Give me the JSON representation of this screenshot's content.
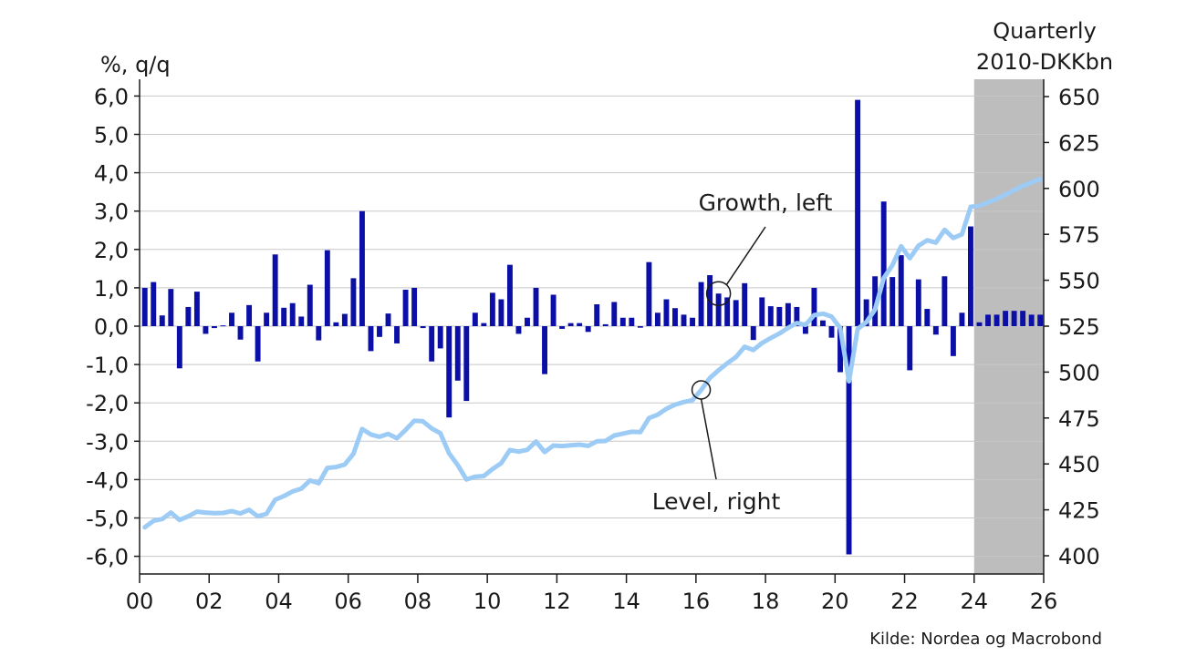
{
  "chart_data": {
    "type": "bar+line",
    "left_axis_unit": "%, q/q",
    "right_axis_unit_line1": "Quarterly",
    "right_axis_unit_line2": "2010-DKKbn",
    "source": "Kilde: Nordea og Macrobond",
    "x_ticks": [
      "00",
      "02",
      "04",
      "06",
      "08",
      "10",
      "12",
      "14",
      "16",
      "18",
      "20",
      "22",
      "24",
      "26"
    ],
    "x_range": [
      2000,
      2026
    ],
    "left_ticks": [
      "6,0",
      "5,0",
      "4,0",
      "3,0",
      "2,0",
      "1,0",
      "0,0",
      "-1,0",
      "-2,0",
      "-3,0",
      "-4,0",
      "-5,0",
      "-6,0"
    ],
    "left_range": [
      -6.5,
      6.2
    ],
    "right_ticks": [
      "650",
      "625",
      "600",
      "575",
      "550",
      "525",
      "500",
      "475",
      "450",
      "425",
      "400"
    ],
    "right_range": [
      392,
      655
    ],
    "forecast_shading": {
      "from": 2024,
      "to": 2026,
      "color": "#bdbdbd"
    },
    "grid": true,
    "colors": {
      "bars": "#0b0fa6",
      "line": "#9ccbf6",
      "grid": "#c8c8c8",
      "axis": "#1a1a1a"
    },
    "annotations": [
      {
        "text": "Growth, left",
        "series": "growth",
        "target_x": 2016.5
      },
      {
        "text": "Level, right",
        "series": "level",
        "target_x": 2016.1
      }
    ],
    "series": [
      {
        "id": "growth",
        "axis": "left",
        "kind": "bar",
        "quarters_start": 2000.0,
        "values": [
          1.0,
          1.15,
          0.28,
          0.97,
          -1.1,
          0.5,
          0.9,
          -0.2,
          -0.05,
          0.02,
          0.35,
          -0.35,
          0.55,
          -0.92,
          0.35,
          1.87,
          0.48,
          0.6,
          0.25,
          1.08,
          -0.37,
          1.98,
          0.1,
          0.32,
          1.25,
          3.0,
          -0.65,
          -0.28,
          0.33,
          -0.45,
          0.95,
          1.0,
          -0.05,
          -0.92,
          -0.58,
          -2.38,
          -1.42,
          -1.95,
          0.35,
          0.08,
          0.87,
          0.7,
          1.6,
          -0.2,
          0.22,
          1.0,
          -1.25,
          0.82,
          -0.07,
          0.08,
          0.08,
          -0.15,
          0.57,
          0.05,
          0.63,
          0.22,
          0.22,
          -0.04,
          1.67,
          0.35,
          0.7,
          0.47,
          0.3,
          0.22,
          1.15,
          1.33,
          0.85,
          0.75,
          0.68,
          1.12,
          -0.36,
          0.75,
          0.52,
          0.5,
          0.6,
          0.5,
          -0.2,
          1.0,
          0.15,
          -0.3,
          -1.2,
          -5.95,
          5.9,
          0.7,
          1.3,
          3.25,
          1.28,
          1.85,
          -1.15,
          1.22,
          0.45,
          -0.22,
          1.3,
          -0.78,
          0.35,
          2.6,
          0.1,
          0.3,
          0.3,
          0.4,
          0.4,
          0.4,
          0.3,
          0.3
        ]
      },
      {
        "id": "level",
        "axis": "right",
        "kind": "line",
        "quarters_start": 2000.0,
        "values": [
          415.5,
          419.0,
          420.0,
          423.5,
          419.5,
          421.5,
          424.0,
          423.5,
          423.2,
          423.3,
          424.3,
          423.0,
          425.0,
          421.5,
          422.8,
          430.5,
          432.5,
          435.0,
          436.5,
          441.0,
          439.5,
          447.8,
          448.3,
          449.7,
          455.5,
          469.0,
          466.0,
          464.8,
          466.3,
          464.0,
          468.5,
          473.5,
          473.2,
          469.3,
          466.7,
          455.8,
          449.3,
          441.5,
          443.0,
          443.4,
          447.2,
          450.4,
          457.6,
          456.7,
          457.7,
          462.2,
          456.5,
          460.0,
          459.7,
          460.1,
          460.5,
          459.8,
          462.3,
          462.5,
          465.5,
          466.5,
          467.5,
          467.3,
          475.0,
          476.8,
          480.0,
          482.3,
          483.7,
          484.7,
          490.3,
          496.8,
          501.0,
          504.8,
          508.2,
          513.8,
          512.0,
          515.8,
          518.5,
          521.0,
          524.1,
          526.7,
          525.7,
          531.0,
          531.8,
          530.2,
          524.0,
          495.0,
          523.5,
          527.2,
          534.0,
          551.2,
          558.2,
          568.5,
          562.0,
          568.8,
          571.8,
          570.5,
          577.5,
          573.0,
          575.0,
          590.0,
          590.6,
          592.4,
          594.2,
          596.6,
          599.0,
          601.4,
          603.2,
          605.0
        ]
      }
    ]
  }
}
